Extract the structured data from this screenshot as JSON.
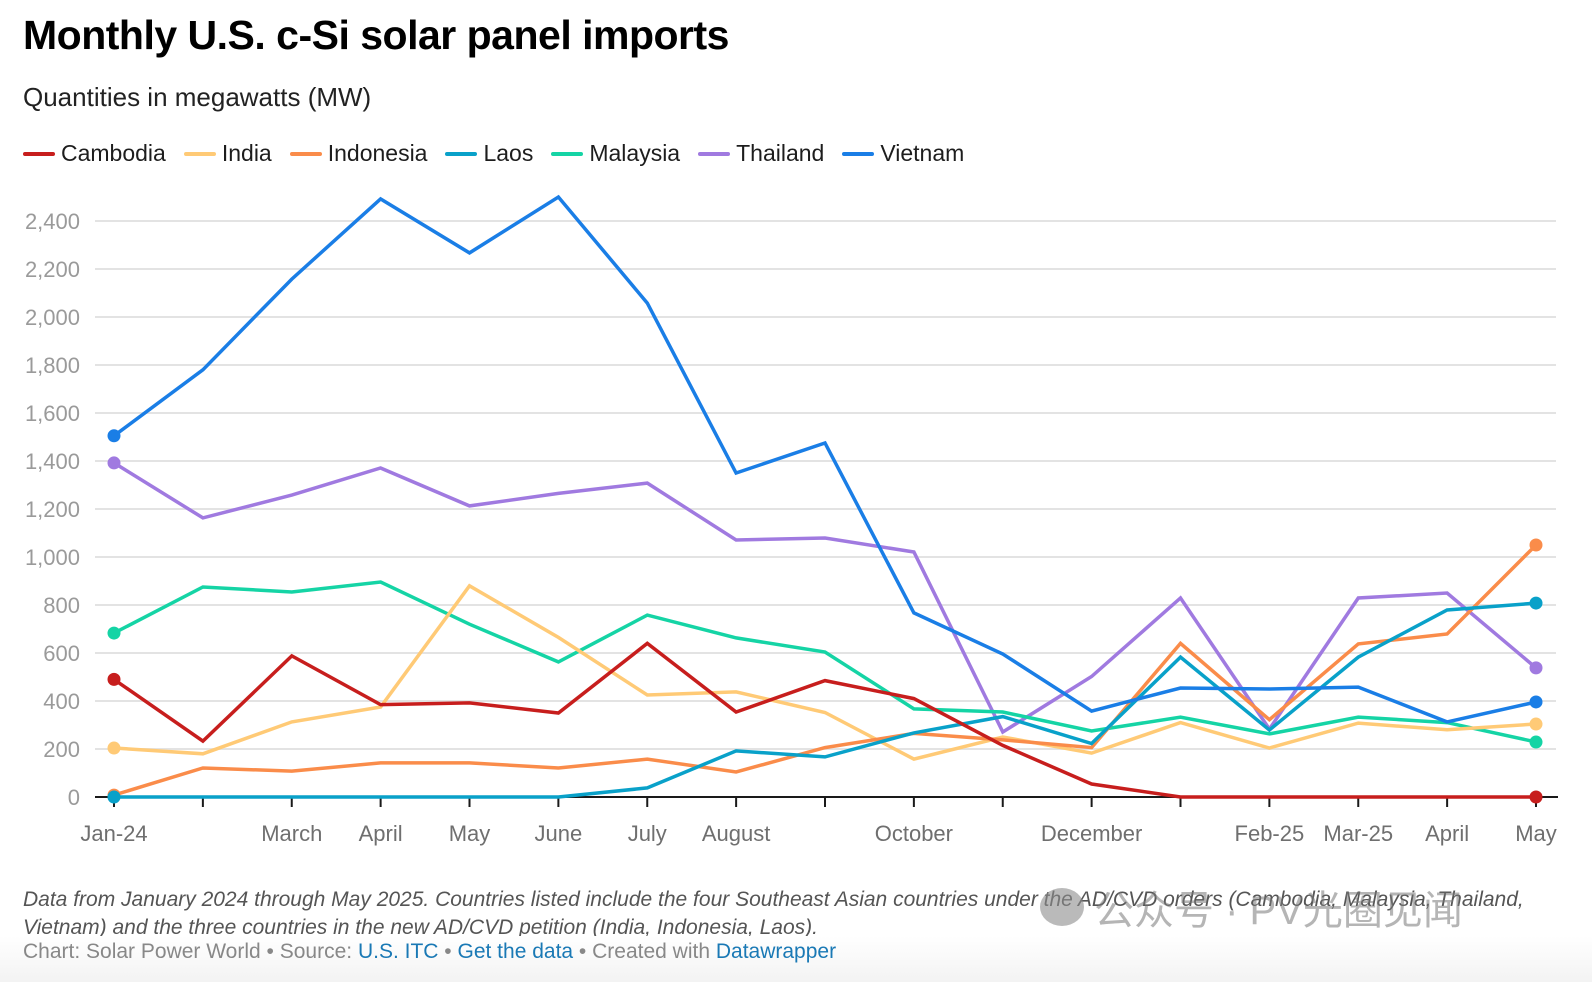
{
  "header": {
    "title": "Monthly U.S. c-Si solar panel imports",
    "subtitle": "Quantities in megawatts (MW)"
  },
  "chart_data": {
    "type": "line",
    "title": "Monthly U.S. c-Si solar panel imports",
    "subtitle": "Quantities in megawatts (MW)",
    "xlabel": "",
    "ylabel": "",
    "ylim": [
      0,
      2500
    ],
    "grid": true,
    "legend_position": "top-left",
    "y_ticks": [
      0,
      200,
      400,
      600,
      800,
      1000,
      1200,
      1400,
      1600,
      1800,
      2000,
      2200,
      2400
    ],
    "y_tick_labels": [
      "0",
      "200",
      "400",
      "600",
      "800",
      "1,000",
      "1,200",
      "1,400",
      "1,600",
      "1,800",
      "2,000",
      "2,200",
      "2,400"
    ],
    "x": [
      "Jan-24",
      "Feb-24",
      "Mar-24",
      "Apr-24",
      "May-24",
      "Jun-24",
      "Jul-24",
      "Aug-24",
      "Sep-24",
      "Oct-24",
      "Nov-24",
      "Dec-24",
      "Jan-25",
      "Feb-25",
      "Mar-25",
      "Apr-25",
      "May-25"
    ],
    "x_tick_labels": [
      "Jan-24",
      "",
      "March",
      "April",
      "May",
      "June",
      "July",
      "August",
      "",
      "October",
      "",
      "December",
      "",
      "Feb-25",
      "Mar-25",
      "April",
      "May"
    ],
    "series": [
      {
        "name": "Cambodia",
        "color": "#c71e1d",
        "values": [
          490,
          233,
          588,
          385,
          392,
          350,
          640,
          354,
          485,
          410,
          215,
          54,
          0,
          0,
          0,
          0,
          0
        ]
      },
      {
        "name": "India",
        "color": "#ffca76",
        "values": [
          204,
          180,
          313,
          375,
          880,
          665,
          425,
          438,
          352,
          158,
          250,
          183,
          310,
          204,
          308,
          280,
          304
        ]
      },
      {
        "name": "Indonesia",
        "color": "#fa8c4a",
        "values": [
          8,
          121,
          108,
          142,
          142,
          121,
          158,
          104,
          206,
          265,
          238,
          206,
          640,
          322,
          638,
          679,
          1050
        ]
      },
      {
        "name": "Laos",
        "color": "#09a1c9",
        "values": [
          0,
          0,
          0,
          0,
          0,
          0,
          38,
          192,
          167,
          267,
          335,
          223,
          583,
          279,
          583,
          779,
          808
        ]
      },
      {
        "name": "Malaysia",
        "color": "#15d4a5",
        "values": [
          683,
          875,
          854,
          896,
          720,
          563,
          758,
          663,
          604,
          367,
          354,
          275,
          333,
          263,
          333,
          310,
          229
        ]
      },
      {
        "name": "Thailand",
        "color": "#a07ae0",
        "values": [
          1392,
          1163,
          1258,
          1371,
          1213,
          1265,
          1308,
          1071,
          1079,
          1021,
          271,
          502,
          829,
          283,
          829,
          850,
          538
        ]
      },
      {
        "name": "Vietnam",
        "color": "#1a7ee6",
        "values": [
          1505,
          1780,
          2158,
          2492,
          2267,
          2500,
          2058,
          1350,
          1475,
          767,
          596,
          358,
          454,
          450,
          458,
          313,
          396
        ]
      }
    ],
    "annotations": []
  },
  "notes": "Data from January 2024 through May 2025. Countries listed include the four Southeast Asian countries under the AD/CVD orders (Cambodia, Malaysia, Thailand, Vietnam) and the three countries in the new AD/CVD petition (India, Indonesia, Laos).",
  "footer": {
    "chart_label": "Chart: Solar Power World",
    "sep": " • ",
    "source_label": "Source: ",
    "source_link": "U.S. ITC",
    "data_link": "Get the data",
    "created_label": "Created with ",
    "created_link": "Datawrapper"
  },
  "watermark": {
    "text": "公众号 · PV光圈见闻"
  }
}
